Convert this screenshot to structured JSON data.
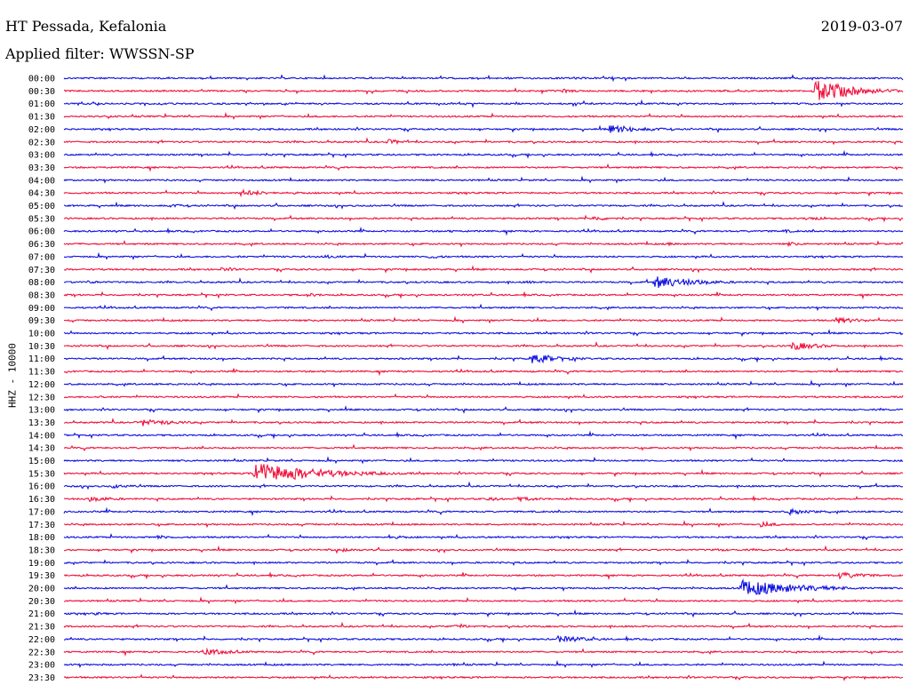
{
  "header": {
    "station": "HT Pessada, Kefalonia",
    "date": "2019-03-07",
    "filter": "Applied filter: WWSSN-SP",
    "channel": "HHZ - 10000"
  },
  "colors": {
    "even": "#1010e0",
    "odd": "#f0103c"
  },
  "chart_data": {
    "type": "line",
    "title": "HT Pessada, Kefalonia",
    "ylabel": "HHZ - 10000",
    "rows": [
      "00:00",
      "00:30",
      "01:00",
      "01:30",
      "02:00",
      "02:30",
      "03:00",
      "03:30",
      "04:00",
      "04:30",
      "05:00",
      "05:30",
      "06:00",
      "06:30",
      "07:00",
      "07:30",
      "08:00",
      "08:30",
      "09:00",
      "09:30",
      "10:00",
      "10:30",
      "11:00",
      "11:30",
      "12:00",
      "12:30",
      "13:00",
      "13:30",
      "14:00",
      "14:30",
      "15:00",
      "15:30",
      "16:00",
      "16:30",
      "17:00",
      "17:30",
      "18:00",
      "18:30",
      "19:00",
      "19:30",
      "20:00",
      "20:30",
      "21:00",
      "21:30",
      "22:00",
      "22:30",
      "23:00",
      "23:30"
    ],
    "x_range_minutes": [
      0,
      30
    ],
    "events": [
      {
        "row": 0,
        "minute": 18.2,
        "amp": 0.6,
        "dur": 1.0
      },
      {
        "row": 0,
        "minute": 5.6,
        "amp": 0.3,
        "dur": 0.8
      },
      {
        "row": 1,
        "minute": 3.5,
        "amp": 0.5,
        "dur": 1.5
      },
      {
        "row": 1,
        "minute": 17.8,
        "amp": 0.9,
        "dur": 0.8
      },
      {
        "row": 1,
        "minute": 22.6,
        "amp": 0.4,
        "dur": 0.8
      },
      {
        "row": 1,
        "minute": 26.8,
        "amp": 6.0,
        "dur": 1.4
      },
      {
        "row": 4,
        "minute": 6.9,
        "amp": 0.5,
        "dur": 0.8
      },
      {
        "row": 4,
        "minute": 19.5,
        "amp": 2.0,
        "dur": 1.4
      },
      {
        "row": 5,
        "minute": 11.5,
        "amp": 1.4,
        "dur": 0.8
      },
      {
        "row": 9,
        "minute": 6.3,
        "amp": 1.5,
        "dur": 1.2
      },
      {
        "row": 9,
        "minute": 8.2,
        "amp": 0.6,
        "dur": 0.8
      },
      {
        "row": 10,
        "minute": 3.8,
        "amp": 0.8,
        "dur": 0.8
      },
      {
        "row": 11,
        "minute": 18.9,
        "amp": 1.2,
        "dur": 0.8
      },
      {
        "row": 11,
        "minute": 26.5,
        "amp": 1.1,
        "dur": 0.8
      },
      {
        "row": 12,
        "minute": 13.7,
        "amp": 0.6,
        "dur": 0.8
      },
      {
        "row": 12,
        "minute": 25.6,
        "amp": 0.9,
        "dur": 0.8
      },
      {
        "row": 13,
        "minute": 21.6,
        "amp": 0.7,
        "dur": 0.8
      },
      {
        "row": 13,
        "minute": 25.9,
        "amp": 0.9,
        "dur": 0.8
      },
      {
        "row": 14,
        "minute": 9.3,
        "amp": 0.9,
        "dur": 0.8
      },
      {
        "row": 14,
        "minute": 13.0,
        "amp": 1.0,
        "dur": 0.8
      },
      {
        "row": 15,
        "minute": 5.6,
        "amp": 1.0,
        "dur": 0.8
      },
      {
        "row": 15,
        "minute": 28.1,
        "amp": 0.6,
        "dur": 0.6
      },
      {
        "row": 16,
        "minute": 0.8,
        "amp": 0.9,
        "dur": 0.6
      },
      {
        "row": 16,
        "minute": 16.5,
        "amp": 0.7,
        "dur": 0.8
      },
      {
        "row": 16,
        "minute": 21.1,
        "amp": 3.0,
        "dur": 1.6
      },
      {
        "row": 17,
        "minute": 8.7,
        "amp": 0.9,
        "dur": 0.8
      },
      {
        "row": 19,
        "minute": 27.6,
        "amp": 1.6,
        "dur": 1.0
      },
      {
        "row": 21,
        "minute": 26.0,
        "amp": 2.2,
        "dur": 1.0
      },
      {
        "row": 22,
        "minute": 16.7,
        "amp": 2.5,
        "dur": 1.2
      },
      {
        "row": 25,
        "minute": 1.2,
        "amp": 0.6,
        "dur": 0.8
      },
      {
        "row": 27,
        "minute": 2.8,
        "amp": 2.0,
        "dur": 1.2
      },
      {
        "row": 31,
        "minute": 6.8,
        "amp": 5.5,
        "dur": 2.2
      },
      {
        "row": 31,
        "minute": 11.0,
        "amp": 0.8,
        "dur": 0.6
      },
      {
        "row": 32,
        "minute": 1.7,
        "amp": 1.0,
        "dur": 1.0
      },
      {
        "row": 33,
        "minute": 0.9,
        "amp": 1.5,
        "dur": 1.0
      },
      {
        "row": 33,
        "minute": 15.1,
        "amp": 1.0,
        "dur": 0.8
      },
      {
        "row": 33,
        "minute": 16.2,
        "amp": 1.1,
        "dur": 1.0
      },
      {
        "row": 34,
        "minute": 25.9,
        "amp": 1.6,
        "dur": 1.0
      },
      {
        "row": 35,
        "minute": 24.9,
        "amp": 1.2,
        "dur": 0.8
      },
      {
        "row": 36,
        "minute": 3.3,
        "amp": 1.0,
        "dur": 0.8
      },
      {
        "row": 36,
        "minute": 11.6,
        "amp": 1.0,
        "dur": 0.8
      },
      {
        "row": 37,
        "minute": 9.9,
        "amp": 1.0,
        "dur": 0.8
      },
      {
        "row": 37,
        "minute": 23.2,
        "amp": 0.8,
        "dur": 0.8
      },
      {
        "row": 39,
        "minute": 27.7,
        "amp": 1.6,
        "dur": 1.2
      },
      {
        "row": 40,
        "minute": 24.2,
        "amp": 4.0,
        "dur": 2.2
      },
      {
        "row": 42,
        "minute": 1.1,
        "amp": 0.7,
        "dur": 0.8
      },
      {
        "row": 43,
        "minute": 13.9,
        "amp": 1.2,
        "dur": 0.8
      },
      {
        "row": 44,
        "minute": 17.6,
        "amp": 1.6,
        "dur": 1.4
      },
      {
        "row": 44,
        "minute": 11.2,
        "amp": 0.7,
        "dur": 0.6
      },
      {
        "row": 45,
        "minute": 5.0,
        "amp": 1.6,
        "dur": 1.2
      },
      {
        "row": 46,
        "minute": 13.9,
        "amp": 0.6,
        "dur": 0.8
      }
    ]
  }
}
